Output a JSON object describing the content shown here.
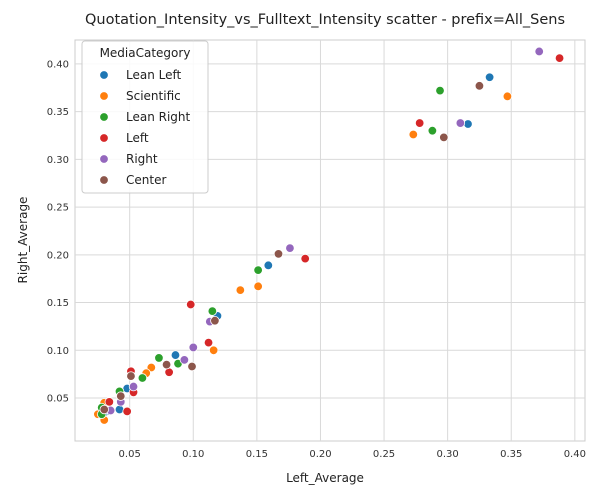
{
  "chart_data": {
    "type": "scatter",
    "title": "Quotation_Intensity_vs_Fulltext_Intensity scatter - prefix=All_Sens",
    "xlabel": "Left_Average",
    "ylabel": "Right_Average",
    "xlim": [
      0.007,
      0.408
    ],
    "ylim": [
      0.005,
      0.425
    ],
    "xticks": [
      "0.05",
      "0.10",
      "0.15",
      "0.20",
      "0.25",
      "0.30",
      "0.35",
      "0.40"
    ],
    "yticks": [
      "0.05",
      "0.10",
      "0.15",
      "0.20",
      "0.25",
      "0.30",
      "0.35",
      "0.40"
    ],
    "xtick_values": [
      0.05,
      0.1,
      0.15,
      0.2,
      0.25,
      0.3,
      0.35,
      0.4
    ],
    "ytick_values": [
      0.05,
      0.1,
      0.15,
      0.2,
      0.25,
      0.3,
      0.35,
      0.4
    ],
    "grid": true,
    "legend_title": "MediaCategory",
    "legend_position": "top-left",
    "series": [
      {
        "name": "Lean Left",
        "color": "#1f77b4",
        "points": [
          [
            0.333,
            0.386
          ],
          [
            0.316,
            0.337
          ],
          [
            0.159,
            0.189
          ],
          [
            0.119,
            0.136
          ],
          [
            0.086,
            0.095
          ],
          [
            0.048,
            0.06
          ],
          [
            0.042,
            0.038
          ],
          [
            0.032,
            0.036
          ],
          [
            0.029,
            0.033
          ]
        ]
      },
      {
        "name": "Scientific",
        "color": "#ff7f0e",
        "points": [
          [
            0.347,
            0.366
          ],
          [
            0.273,
            0.326
          ],
          [
            0.151,
            0.167
          ],
          [
            0.137,
            0.163
          ],
          [
            0.116,
            0.1
          ],
          [
            0.067,
            0.082
          ],
          [
            0.063,
            0.076
          ],
          [
            0.03,
            0.045
          ],
          [
            0.025,
            0.033
          ],
          [
            0.03,
            0.027
          ]
        ]
      },
      {
        "name": "Lean Right",
        "color": "#2ca02c",
        "points": [
          [
            0.294,
            0.372
          ],
          [
            0.288,
            0.33
          ],
          [
            0.151,
            0.184
          ],
          [
            0.115,
            0.141
          ],
          [
            0.073,
            0.092
          ],
          [
            0.088,
            0.086
          ],
          [
            0.06,
            0.071
          ],
          [
            0.042,
            0.057
          ],
          [
            0.028,
            0.04
          ],
          [
            0.028,
            0.033
          ]
        ]
      },
      {
        "name": "Left",
        "color": "#d62728",
        "points": [
          [
            0.388,
            0.406
          ],
          [
            0.278,
            0.338
          ],
          [
            0.188,
            0.196
          ],
          [
            0.098,
            0.148
          ],
          [
            0.112,
            0.108
          ],
          [
            0.081,
            0.077
          ],
          [
            0.051,
            0.078
          ],
          [
            0.053,
            0.056
          ],
          [
            0.048,
            0.036
          ],
          [
            0.034,
            0.046
          ]
        ]
      },
      {
        "name": "Right",
        "color": "#9467bd",
        "points": [
          [
            0.372,
            0.413
          ],
          [
            0.31,
            0.338
          ],
          [
            0.176,
            0.207
          ],
          [
            0.113,
            0.13
          ],
          [
            0.1,
            0.103
          ],
          [
            0.093,
            0.09
          ],
          [
            0.053,
            0.062
          ],
          [
            0.043,
            0.046
          ],
          [
            0.035,
            0.037
          ]
        ]
      },
      {
        "name": "Center",
        "color": "#8c564b",
        "points": [
          [
            0.325,
            0.377
          ],
          [
            0.297,
            0.323
          ],
          [
            0.167,
            0.201
          ],
          [
            0.117,
            0.131
          ],
          [
            0.079,
            0.085
          ],
          [
            0.099,
            0.083
          ],
          [
            0.051,
            0.073
          ],
          [
            0.043,
            0.052
          ],
          [
            0.03,
            0.038
          ]
        ]
      }
    ]
  }
}
